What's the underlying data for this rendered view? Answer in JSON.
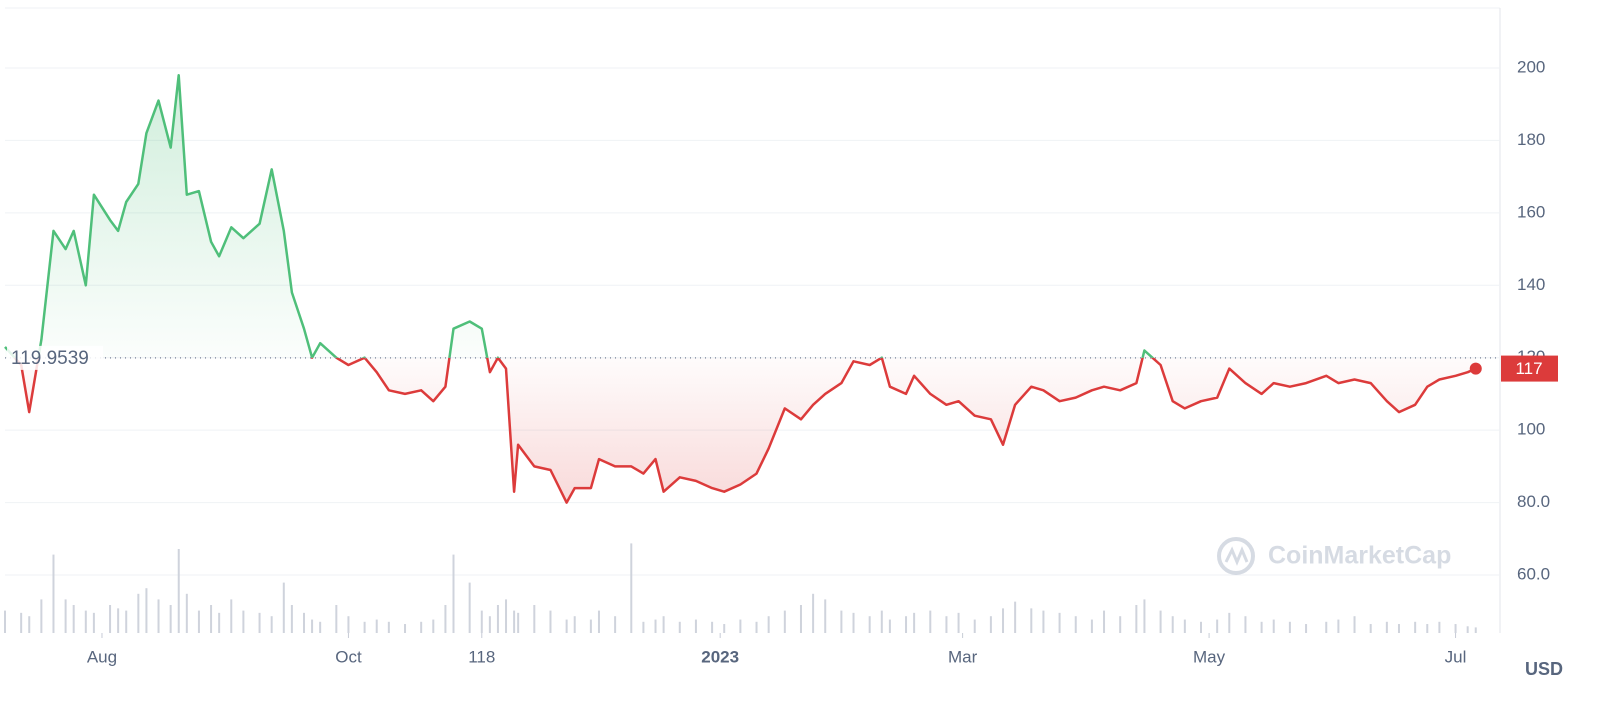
{
  "chart_data": {
    "type": "line",
    "x": [
      0,
      4,
      6,
      9,
      12,
      15,
      17,
      20,
      22,
      26,
      28,
      30,
      33,
      35,
      38,
      41,
      43,
      45,
      48,
      51,
      53,
      56,
      59,
      63,
      66,
      69,
      71,
      74,
      76,
      78,
      82,
      85,
      89,
      92,
      95,
      99,
      103,
      106,
      109,
      111,
      115,
      118,
      120,
      122,
      124,
      126,
      127,
      131,
      135,
      139,
      141,
      145,
      147,
      151,
      155,
      158,
      161,
      163,
      167,
      171,
      175,
      178,
      182,
      186,
      189,
      193,
      197,
      200,
      203,
      207,
      210,
      214,
      217,
      219,
      223,
      225,
      229,
      233,
      236,
      240,
      244,
      247,
      250,
      254,
      257,
      261,
      265,
      269,
      272,
      276,
      280,
      282,
      286,
      289,
      292,
      296,
      300,
      303,
      307,
      311,
      314,
      318,
      322,
      327,
      330,
      334,
      338,
      342,
      345,
      349,
      352,
      355,
      359,
      362,
      364
    ],
    "values": [
      123,
      118,
      105,
      125,
      155,
      150,
      155,
      140,
      165,
      158,
      155,
      163,
      168,
      182,
      191,
      178,
      198,
      165,
      166,
      152,
      148,
      156,
      153,
      157,
      172,
      155,
      138,
      128,
      120,
      124,
      120,
      118,
      120,
      116,
      111,
      110,
      111,
      108,
      112,
      128,
      130,
      128,
      116,
      120,
      117,
      83,
      96,
      90,
      89,
      80,
      84,
      84,
      92,
      90,
      90,
      88,
      92,
      83,
      87,
      86,
      84,
      83,
      85,
      88,
      95,
      106,
      103,
      107,
      110,
      113,
      119,
      118,
      120,
      112,
      110,
      115,
      110,
      107,
      108,
      104,
      103,
      96,
      107,
      112,
      111,
      108,
      109,
      111,
      112,
      111,
      113,
      122,
      118,
      108,
      106,
      108,
      109,
      117,
      113,
      110,
      113,
      112,
      113,
      115,
      113,
      114,
      113,
      108,
      105,
      107,
      112,
      114,
      115,
      116,
      117
    ],
    "volume": [
      20,
      18,
      15,
      30,
      70,
      30,
      25,
      20,
      18,
      25,
      22,
      20,
      35,
      40,
      30,
      25,
      75,
      35,
      20,
      25,
      18,
      30,
      20,
      18,
      15,
      45,
      25,
      18,
      12,
      10,
      25,
      15,
      10,
      12,
      10,
      8,
      10,
      12,
      25,
      70,
      45,
      20,
      15,
      25,
      30,
      20,
      18,
      25,
      20,
      12,
      15,
      12,
      20,
      15,
      80,
      10,
      12,
      15,
      10,
      12,
      10,
      8,
      12,
      10,
      15,
      20,
      25,
      35,
      30,
      20,
      18,
      15,
      20,
      12,
      15,
      18,
      20,
      15,
      18,
      12,
      15,
      22,
      28,
      22,
      20,
      18,
      15,
      12,
      20,
      15,
      25,
      30,
      20,
      15,
      12,
      10,
      12,
      18,
      15,
      10,
      12,
      10,
      8,
      10,
      12,
      15,
      8,
      10,
      8,
      10,
      8,
      10,
      8,
      6,
      5
    ],
    "volume_lim": [
      0,
      100
    ],
    "baseline": 119.9539,
    "current_price": 117,
    "up_color": "#4fbf7a",
    "down_color": "#dc3b3b",
    "volume_color": "#cfd3dc",
    "xlim": [
      0,
      370
    ],
    "xticks": [
      {
        "value": 24,
        "label": "Aug"
      },
      {
        "value": 85,
        "label": "Oct"
      },
      118,
      {
        "value": 177,
        "label": "2023",
        "bold": true
      },
      {
        "value": 237,
        "label": "Mar"
      },
      {
        "value": 298,
        "label": "May"
      },
      {
        "value": 359,
        "label": "Jul"
      }
    ],
    "ylim": [
      44,
      216
    ],
    "yticks": [
      {
        "value": 60,
        "label": "60.0"
      },
      {
        "value": 80,
        "label": "80.0"
      },
      100,
      120,
      140,
      160,
      180,
      200
    ],
    "grid": true,
    "currency": "USD",
    "watermark": "CoinMarketCap"
  }
}
